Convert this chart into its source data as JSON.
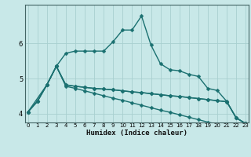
{
  "xlabel": "Humidex (Indice chaleur)",
  "bg_color": "#c8e8e8",
  "grid_color": "#a8d0d0",
  "line_color": "#1a7070",
  "xlim": [
    -0.3,
    23.3
  ],
  "ylim": [
    3.75,
    7.1
  ],
  "xticks": [
    0,
    1,
    2,
    3,
    4,
    5,
    6,
    7,
    8,
    9,
    10,
    11,
    12,
    13,
    14,
    15,
    16,
    17,
    18,
    19,
    20,
    21,
    22,
    23
  ],
  "yticks": [
    4,
    5,
    6
  ],
  "series": [
    {
      "x": [
        0,
        1,
        2,
        3,
        4,
        5,
        6,
        7,
        8,
        9,
        10,
        11,
        12,
        13,
        14,
        15,
        16,
        17,
        18,
        19,
        20,
        21,
        22,
        23
      ],
      "y": [
        4.05,
        4.35,
        4.82,
        5.35,
        5.72,
        5.78,
        5.78,
        5.78,
        5.78,
        6.05,
        6.38,
        6.38,
        6.78,
        5.95,
        5.42,
        5.25,
        5.22,
        5.12,
        5.06,
        4.72,
        4.66,
        4.35,
        3.88,
        3.72
      ]
    },
    {
      "x": [
        0,
        2,
        3,
        4,
        5,
        6,
        7,
        8,
        9,
        10,
        11,
        12,
        13,
        14,
        15,
        16,
        17,
        18,
        19,
        20,
        21,
        22,
        23
      ],
      "y": [
        4.05,
        4.82,
        5.35,
        4.82,
        4.78,
        4.75,
        4.72,
        4.7,
        4.68,
        4.65,
        4.62,
        4.6,
        4.57,
        4.54,
        4.51,
        4.49,
        4.46,
        4.43,
        4.4,
        4.37,
        4.34,
        3.88,
        3.72
      ]
    },
    {
      "x": [
        0,
        1,
        2,
        3,
        4,
        5,
        6,
        7,
        8,
        9,
        10,
        11,
        12,
        13,
        14,
        15,
        16,
        17,
        18,
        19,
        20,
        21,
        22,
        23
      ],
      "y": [
        4.05,
        4.35,
        4.82,
        5.35,
        4.82,
        4.78,
        4.75,
        4.72,
        4.7,
        4.68,
        4.65,
        4.62,
        4.6,
        4.57,
        4.54,
        4.51,
        4.49,
        4.46,
        4.43,
        4.4,
        4.37,
        4.34,
        3.88,
        3.72
      ]
    },
    {
      "x": [
        0,
        1,
        2,
        3,
        4,
        5,
        6,
        7,
        8,
        9,
        10,
        11,
        12,
        13,
        14,
        15,
        16,
        17,
        18,
        19,
        20,
        21,
        22,
        23
      ],
      "y": [
        4.05,
        4.35,
        4.82,
        5.35,
        4.78,
        4.72,
        4.65,
        4.58,
        4.51,
        4.44,
        4.38,
        4.31,
        4.24,
        4.17,
        4.1,
        4.04,
        3.97,
        3.9,
        3.83,
        3.76,
        3.7,
        3.63,
        3.56,
        3.5
      ]
    }
  ]
}
